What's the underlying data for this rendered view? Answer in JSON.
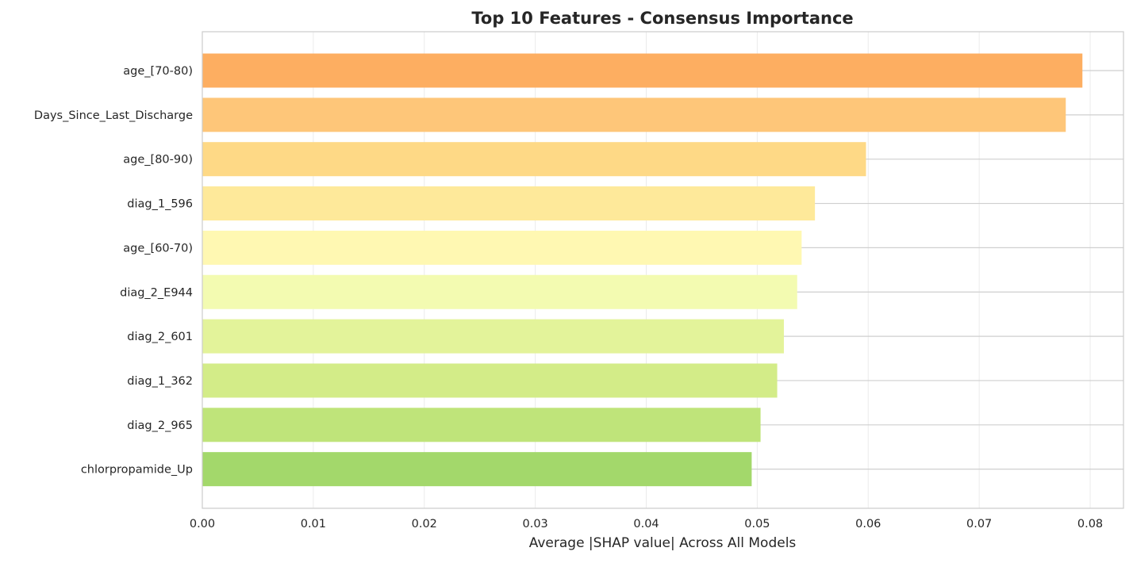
{
  "chart_data": {
    "type": "bar",
    "orientation": "horizontal",
    "title": "Top 10 Features - Consensus Importance",
    "xlabel": "Average |SHAP value| Across All Models",
    "ylabel": "",
    "xlim": [
      0,
      0.083
    ],
    "xticks": [
      0.0,
      0.01,
      0.02,
      0.03,
      0.04,
      0.05,
      0.06,
      0.07,
      0.08
    ],
    "xtick_labels": [
      "0.00",
      "0.01",
      "0.02",
      "0.03",
      "0.04",
      "0.05",
      "0.06",
      "0.07",
      "0.08"
    ],
    "grid": true,
    "legend": "none",
    "categories": [
      "age_[70-80)",
      "Days_Since_Last_Discharge",
      "age_[80-90)",
      "diag_1_596",
      "age_[60-70)",
      "diag_2_E944",
      "diag_2_601",
      "diag_1_362",
      "diag_2_965",
      "chlorpropamide_Up"
    ],
    "values": [
      0.0793,
      0.0778,
      0.0598,
      0.0552,
      0.054,
      0.0536,
      0.0524,
      0.0518,
      0.0503,
      0.0495
    ],
    "colors": [
      "#fdae61",
      "#fec679",
      "#fed986",
      "#fee99a",
      "#fff8b2",
      "#f3fbb1",
      "#e3f39a",
      "#d3ec88",
      "#bfe47a",
      "#a3d86b"
    ],
    "frame_color": "#cccccc",
    "grid_color": "#ebebeb"
  }
}
